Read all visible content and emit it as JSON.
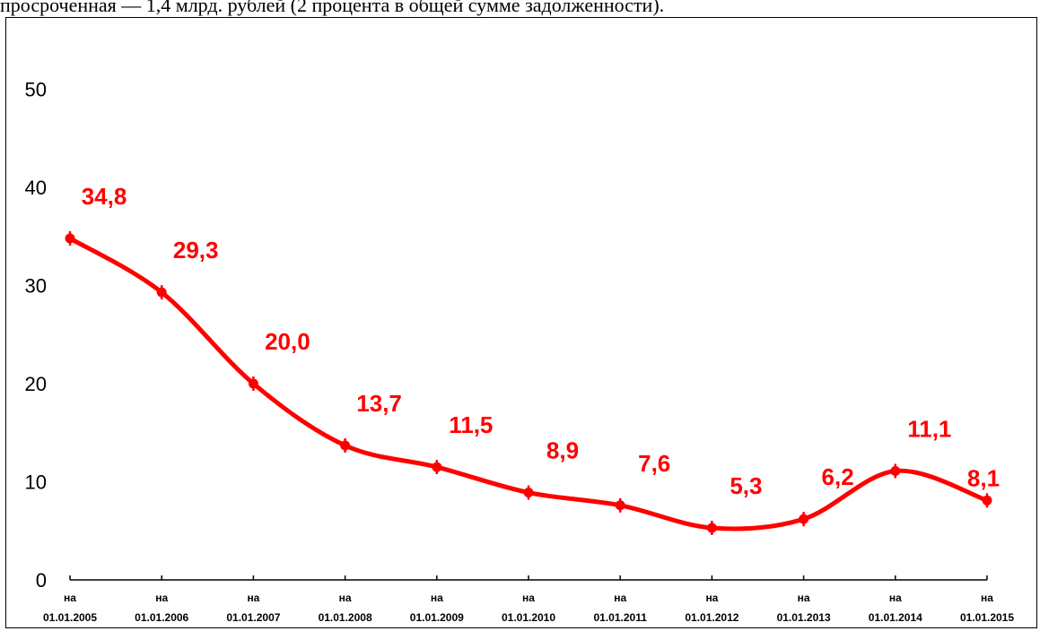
{
  "header_text": "просроченная — 1,4 млрд. рублей (2 процента в общей сумме задолженности).",
  "chart_data": {
    "type": "line",
    "title": "",
    "xlabel": "",
    "ylabel": "",
    "ylim": [
      0,
      55
    ],
    "yticks": [
      0,
      10,
      20,
      30,
      40,
      50
    ],
    "grid": false,
    "legend": "none",
    "color": "#ff0000",
    "categories": [
      {
        "prefix": "на",
        "date": "01.01.2005"
      },
      {
        "prefix": "на",
        "date": "01.01.2006"
      },
      {
        "prefix": "на",
        "date": "01.01.2007"
      },
      {
        "prefix": "на",
        "date": "01.01.2008"
      },
      {
        "prefix": "на",
        "date": "01.01.2009"
      },
      {
        "prefix": "на",
        "date": "01.01.2010"
      },
      {
        "prefix": "на",
        "date": "01.01.2011"
      },
      {
        "prefix": "на",
        "date": "01.01.2012"
      },
      {
        "prefix": "на",
        "date": "01.01.2013"
      },
      {
        "prefix": "на",
        "date": "01.01.2014"
      },
      {
        "prefix": "на",
        "date": "01.01.2015"
      }
    ],
    "values": [
      34.8,
      29.3,
      20.0,
      13.7,
      11.5,
      8.9,
      7.6,
      5.3,
      6.2,
      11.1,
      8.1
    ],
    "value_labels": [
      "34,8",
      "29,3",
      "20,0",
      "13,7",
      "11,5",
      "8,9",
      "7,6",
      "5,3",
      "6,2",
      "11,1",
      "8,1"
    ]
  }
}
